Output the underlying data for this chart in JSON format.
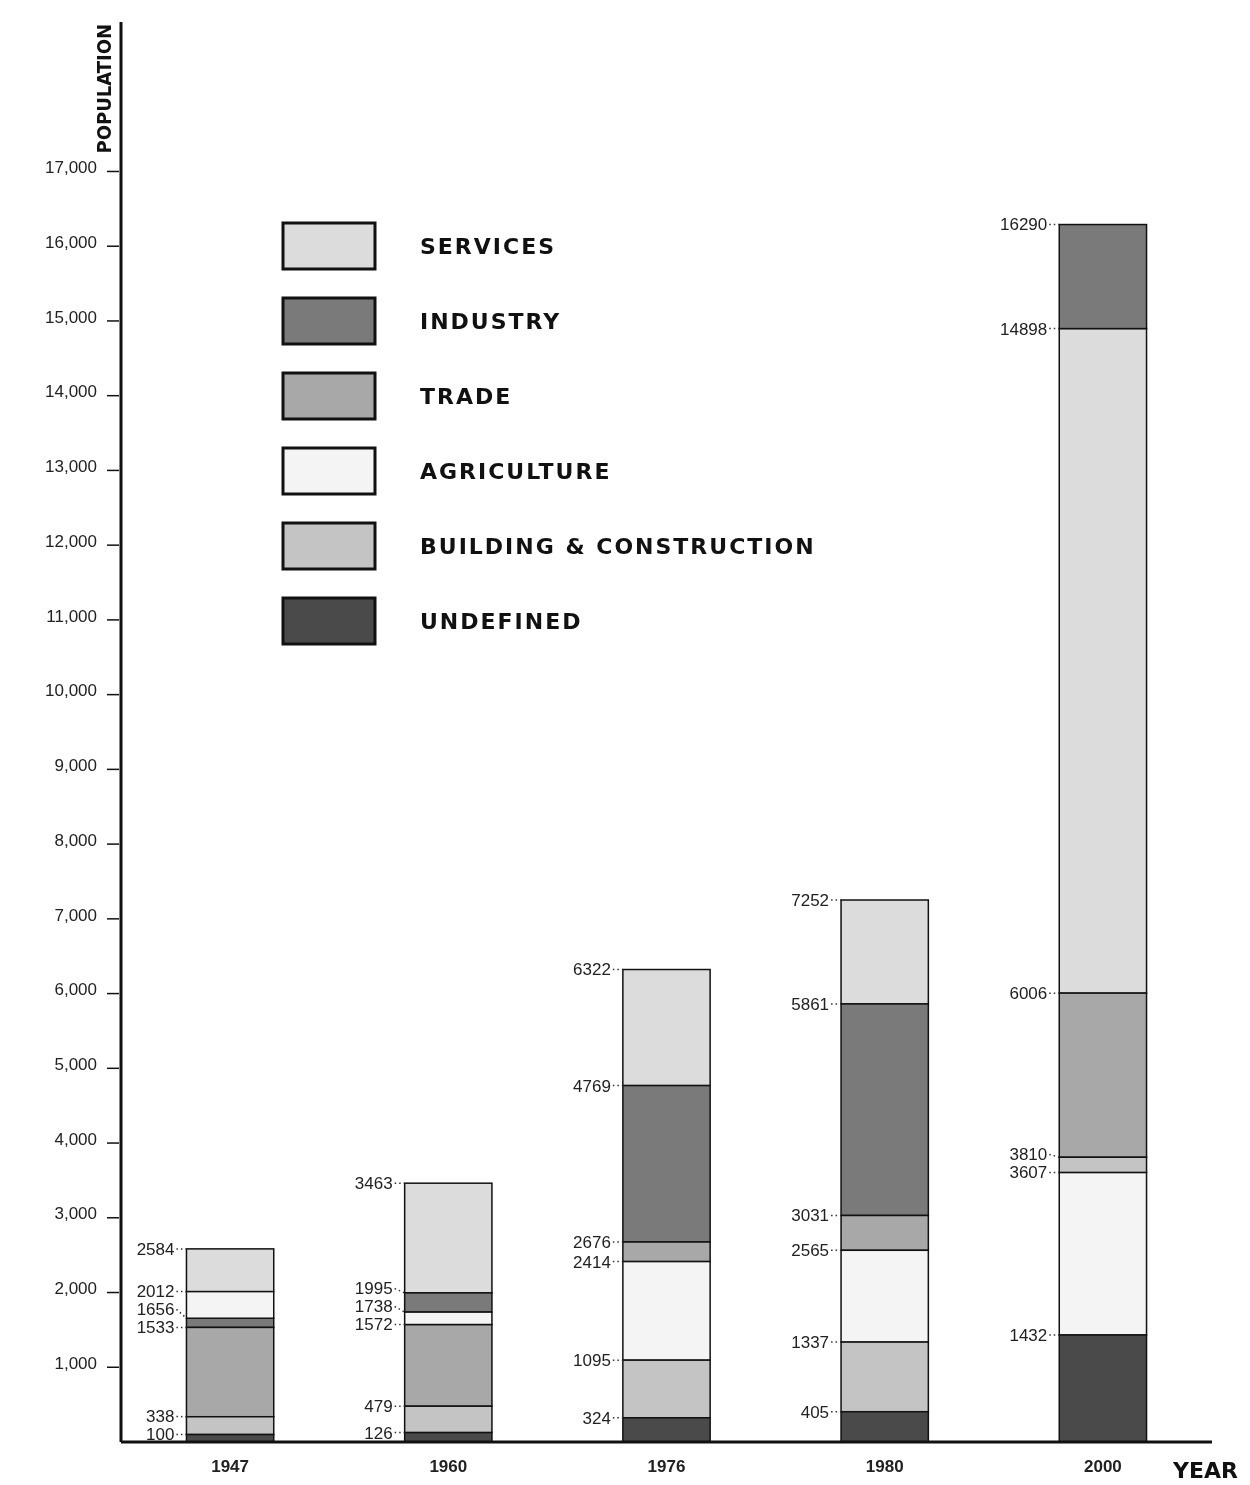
{
  "chart_data": {
    "type": "bar",
    "xlabel": "YEAR",
    "ylabel": "POPULATION",
    "categories": [
      "1947",
      "1960",
      "1976",
      "1980",
      "2000"
    ],
    "ylim": [
      0,
      19000
    ],
    "yticks": [
      {
        "value": 1000,
        "label": "1,000"
      },
      {
        "value": 2000,
        "label": "2,000"
      },
      {
        "value": 3000,
        "label": "3,000"
      },
      {
        "value": 4000,
        "label": "4,000"
      },
      {
        "value": 5000,
        "label": "5,000"
      },
      {
        "value": 6000,
        "label": "6,000"
      },
      {
        "value": 7000,
        "label": "7,000"
      },
      {
        "value": 8000,
        "label": "8,000"
      },
      {
        "value": 9000,
        "label": "9,000"
      },
      {
        "value": 10000,
        "label": "10,000"
      },
      {
        "value": 11000,
        "label": "11,000"
      },
      {
        "value": 12000,
        "label": "12,000"
      },
      {
        "value": 13000,
        "label": "13,000"
      },
      {
        "value": 14000,
        "label": "14,000"
      },
      {
        "value": 15000,
        "label": "15,000"
      },
      {
        "value": 16000,
        "label": "16,000"
      },
      {
        "value": 17000,
        "label": "17,000"
      }
    ],
    "legend": "top left",
    "series": [
      {
        "name": "SERVICES",
        "color": "#dcdcdc",
        "base": [
          2012,
          1995,
          4769,
          5861,
          6006
        ],
        "values": [
          572,
          1468,
          1553,
          1391,
          8892
        ],
        "value_labels": [
          "2584",
          "3463",
          "6322",
          "7252",
          "14898"
        ]
      },
      {
        "name": "INDUSTRY",
        "color": "#7a7a7a",
        "base": [
          1533,
          1738,
          2676,
          3031,
          14898
        ],
        "values": [
          123,
          257,
          2093,
          2830,
          1392
        ],
        "value_labels": [
          "1656",
          "1995",
          "4769",
          "5861",
          "16290"
        ]
      },
      {
        "name": "TRADE",
        "color": "#a8a8a8",
        "base": [
          338,
          479,
          2414,
          2565,
          3810
        ],
        "values": [
          1195,
          1093,
          262,
          466,
          2196
        ],
        "value_labels": [
          "1533",
          "1572",
          "2676",
          "3031",
          "6006"
        ]
      },
      {
        "name": "AGRICULTURE",
        "color": "#f4f4f4",
        "base": [
          1656,
          1572,
          1095,
          1337,
          1432
        ],
        "values": [
          356,
          166,
          1319,
          1228,
          2175
        ],
        "value_labels": [
          "2012",
          "1738",
          "2414",
          "2565",
          "3607"
        ]
      },
      {
        "name": "BUILDING & CONSTRUCTION",
        "color": "#c4c4c4",
        "base": [
          100,
          126,
          324,
          405,
          3607
        ],
        "values": [
          238,
          353,
          771,
          932,
          203
        ],
        "value_labels": [
          "338",
          "479",
          "1095",
          "1337",
          "3810"
        ]
      },
      {
        "name": "UNDEFINED",
        "color": "#4a4a4a",
        "base": [
          0,
          0,
          0,
          0,
          0
        ],
        "values": [
          100,
          126,
          324,
          405,
          1432
        ],
        "value_labels": [
          "100",
          "126",
          "324",
          "405",
          "1432"
        ]
      }
    ]
  }
}
